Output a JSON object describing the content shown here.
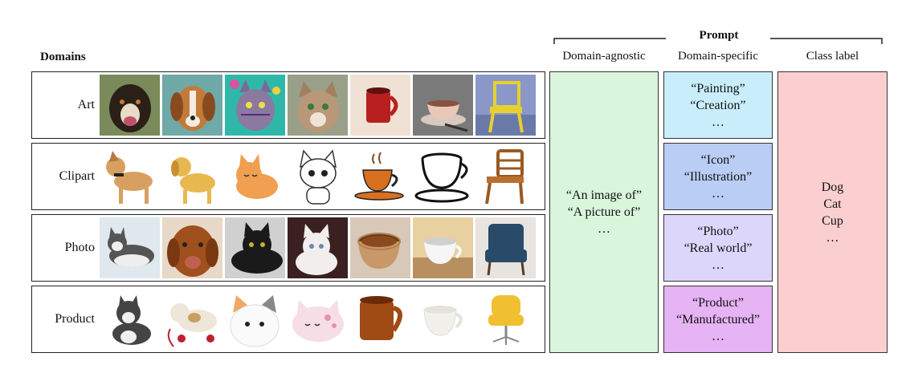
{
  "domains_title": "Domains",
  "prompt_title": "Prompt",
  "headers": {
    "agnostic": "Domain-agnostic",
    "specific": "Domain-specific",
    "class": "Class label"
  },
  "domains": [
    {
      "label": "Art"
    },
    {
      "label": "Clipart"
    },
    {
      "label": "Photo"
    },
    {
      "label": "Product"
    }
  ],
  "agnostic_prompts": [
    "“An image of”",
    "“A picture of”",
    "…"
  ],
  "specific_prompts": [
    [
      "“Painting”",
      "“Creation”",
      "…"
    ],
    [
      "“Icon”",
      "“Illustration”",
      "…"
    ],
    [
      "“Photo”",
      "“Real world”",
      "…"
    ],
    [
      "“Product”",
      "“Manufactured”",
      "…"
    ]
  ],
  "class_labels": [
    "Dog",
    "Cat",
    "Cup",
    "…"
  ],
  "colors": {
    "agnostic": "#d9f5dc",
    "art": "#c9eefb",
    "clipart": "#b9cdf5",
    "photo": "#ddd6fb",
    "product": "#e6b3f4",
    "class": "#fbcfcf"
  }
}
